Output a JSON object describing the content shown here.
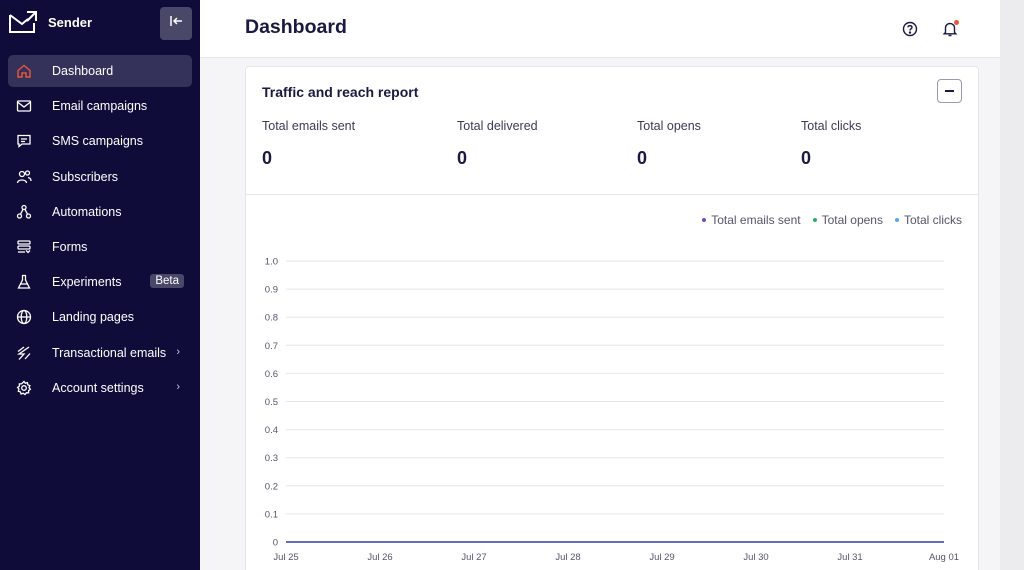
{
  "app": {
    "name": "Sender"
  },
  "sidebar": {
    "items": [
      {
        "label": "Dashboard",
        "icon": "home-icon",
        "active": true
      },
      {
        "label": "Email campaigns",
        "icon": "mail-icon"
      },
      {
        "label": "SMS campaigns",
        "icon": "chat-icon"
      },
      {
        "label": "Subscribers",
        "icon": "users-icon"
      },
      {
        "label": "Automations",
        "icon": "workflow-icon"
      },
      {
        "label": "Forms",
        "icon": "forms-icon"
      },
      {
        "label": "Experiments",
        "icon": "flask-icon",
        "badge": "Beta"
      },
      {
        "label": "Landing pages",
        "icon": "globe-icon"
      },
      {
        "label": "Transactional emails",
        "icon": "lightning-icon",
        "chevron": "›"
      },
      {
        "label": "Account settings",
        "icon": "gear-icon",
        "chevron": "›"
      }
    ]
  },
  "header": {
    "title": "Dashboard"
  },
  "card": {
    "title": "Traffic and reach report",
    "stats": [
      {
        "label": "Total emails sent",
        "value": "0"
      },
      {
        "label": "Total delivered",
        "value": "0"
      },
      {
        "label": "Total opens",
        "value": "0"
      },
      {
        "label": "Total clicks",
        "value": "0"
      }
    ]
  },
  "colors": {
    "sidebar_bg": "#0f0c3a",
    "accent": "#e8553e",
    "series_sent": "#5b54c9",
    "series_opens": "#3ba86b",
    "series_clicks": "#5aa4e8"
  },
  "chart_data": {
    "type": "line",
    "x": [
      "Jul 25",
      "Jul 26",
      "Jul 27",
      "Jul 28",
      "Jul 29",
      "Jul 30",
      "Jul 31",
      "Aug 01"
    ],
    "ylim": [
      0,
      1.0
    ],
    "yticks": [
      "1.0",
      "0.9",
      "0.8",
      "0.7",
      "0.6",
      "0.5",
      "0.4",
      "0.3",
      "0.2",
      "0.1",
      "0"
    ],
    "legend": "top-right",
    "grid": true,
    "series": [
      {
        "name": "Total emails sent",
        "color": "#5b54c9",
        "values": [
          0,
          0,
          0,
          0,
          0,
          0,
          0,
          0
        ]
      },
      {
        "name": "Total opens",
        "color": "#3ba86b",
        "values": [
          0,
          0,
          0,
          0,
          0,
          0,
          0,
          0
        ]
      },
      {
        "name": "Total clicks",
        "color": "#5aa4e8",
        "values": [
          0,
          0,
          0,
          0,
          0,
          0,
          0,
          0
        ]
      }
    ]
  }
}
